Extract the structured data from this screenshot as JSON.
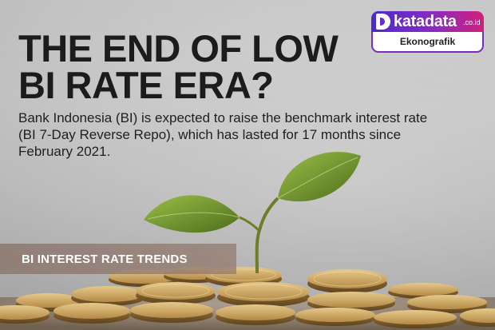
{
  "headline": {
    "line1": "THE END OF LOW",
    "line2": "BI RATE ERA?"
  },
  "subtitle": "Bank Indonesia (BI) is expected to raise the benchmark interest rate (BI 7-Day Reverse Repo), which has lasted for 17 months since February 2021.",
  "logo": {
    "word": "katadata",
    "tld": ".co.id",
    "sub": "Ekonografik"
  },
  "section": {
    "label": "BI INTEREST RATE TRENDS"
  },
  "colors": {
    "headline": "#1c1c1c",
    "accent_start": "#4a2bd0",
    "accent_end": "#d0207c",
    "leaf": "#6f8f2a",
    "coin": "#c9a35a"
  },
  "icons": [
    "katadata-logo-mark",
    "sprout-illustration",
    "coin-stack-illustration"
  ]
}
